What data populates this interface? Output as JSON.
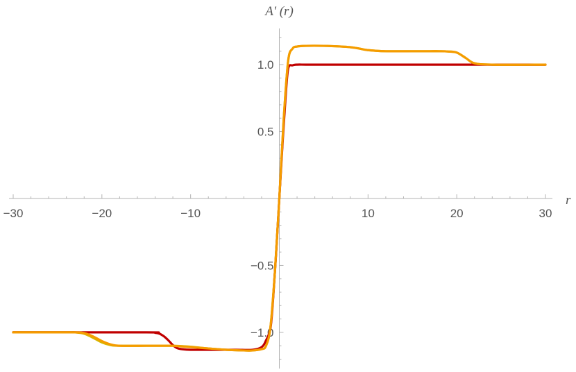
{
  "chart_data": {
    "type": "line",
    "title": "",
    "xlabel": "r",
    "ylabel": "A′ (r)",
    "xlim": [
      -30,
      30
    ],
    "ylim": [
      -1.27,
      1.27
    ],
    "x_ticks": [
      {
        "value": -30,
        "label": "−30"
      },
      {
        "value": -20,
        "label": "−20"
      },
      {
        "value": -10,
        "label": "−10"
      },
      {
        "value": 10,
        "label": "10"
      },
      {
        "value": 20,
        "label": "20"
      },
      {
        "value": 30,
        "label": "30"
      }
    ],
    "y_ticks": [
      {
        "value": 1.0,
        "label": "1.0"
      },
      {
        "value": 0.5,
        "label": "0.5"
      },
      {
        "value": -0.5,
        "label": "−0.5"
      },
      {
        "value": -1.0,
        "label": "−1.0"
      }
    ],
    "grid": false,
    "series": [
      {
        "color": "#d4b800",
        "x": [
          -30,
          -24,
          -23,
          -22,
          -21,
          -20,
          -19,
          -18,
          -15,
          -13,
          -12,
          -11,
          -10,
          -8,
          -6,
          -4,
          -3,
          -2,
          -1.5,
          -1,
          -0.5,
          0,
          0.5,
          1,
          1.5,
          2,
          3,
          5,
          7,
          8,
          9,
          10,
          12,
          15,
          17,
          18,
          19,
          20,
          21,
          22,
          24,
          30
        ],
        "y": [
          -1,
          -1,
          -1,
          -1.01,
          -1.04,
          -1.075,
          -1.095,
          -1.1,
          -1.1,
          -1.1,
          -1.1,
          -1.103,
          -1.107,
          -1.12,
          -1.13,
          -1.135,
          -1.135,
          -1.125,
          -1.1,
          -0.96,
          -0.55,
          0,
          0.6,
          1.03,
          1.12,
          1.135,
          1.14,
          1.14,
          1.135,
          1.13,
          1.12,
          1.108,
          1.1,
          1.1,
          1.1,
          1.1,
          1.098,
          1.09,
          1.05,
          1.01,
          1,
          1
        ]
      },
      {
        "color": "#c00000",
        "x": [
          -30,
          -15,
          -14,
          -13.5,
          -13,
          -12.5,
          -12,
          -11.5,
          -11,
          -10,
          -8,
          -5,
          -3,
          -2,
          -1.5,
          -1,
          -0.7,
          -0.4,
          0,
          0.4,
          0.7,
          1,
          1.5,
          2,
          3,
          5,
          10,
          20,
          30
        ],
        "y": [
          -1,
          -1,
          -1.003,
          -1.01,
          -1.03,
          -1.06,
          -1.095,
          -1.118,
          -1.125,
          -1.13,
          -1.13,
          -1.13,
          -1.13,
          -1.11,
          -1.06,
          -0.97,
          -0.75,
          -0.45,
          0,
          0.45,
          0.75,
          0.97,
          0.995,
          1,
          1,
          1,
          1,
          1,
          1
        ]
      },
      {
        "color": "#f59c00",
        "x": [
          -30,
          -24,
          -23,
          -22,
          -21,
          -20,
          -19,
          -18,
          -15,
          -13,
          -12,
          -11,
          -10,
          -8,
          -6,
          -4,
          -3,
          -2,
          -1.5,
          -1,
          -0.5,
          0,
          0.5,
          1,
          1.5,
          2,
          3,
          5,
          7,
          8,
          9,
          10,
          12,
          15,
          17,
          18,
          19,
          20,
          21,
          22,
          24,
          30
        ],
        "y": [
          -1,
          -1,
          -1,
          -1.005,
          -1.03,
          -1.065,
          -1.09,
          -1.1,
          -1.1,
          -1.1,
          -1.1,
          -1.105,
          -1.11,
          -1.12,
          -1.13,
          -1.135,
          -1.135,
          -1.125,
          -1.1,
          -0.96,
          -0.55,
          0,
          0.6,
          1.03,
          1.12,
          1.135,
          1.14,
          1.14,
          1.135,
          1.13,
          1.12,
          1.108,
          1.1,
          1.1,
          1.1,
          1.1,
          1.098,
          1.09,
          1.05,
          1.01,
          1,
          1
        ]
      }
    ]
  }
}
